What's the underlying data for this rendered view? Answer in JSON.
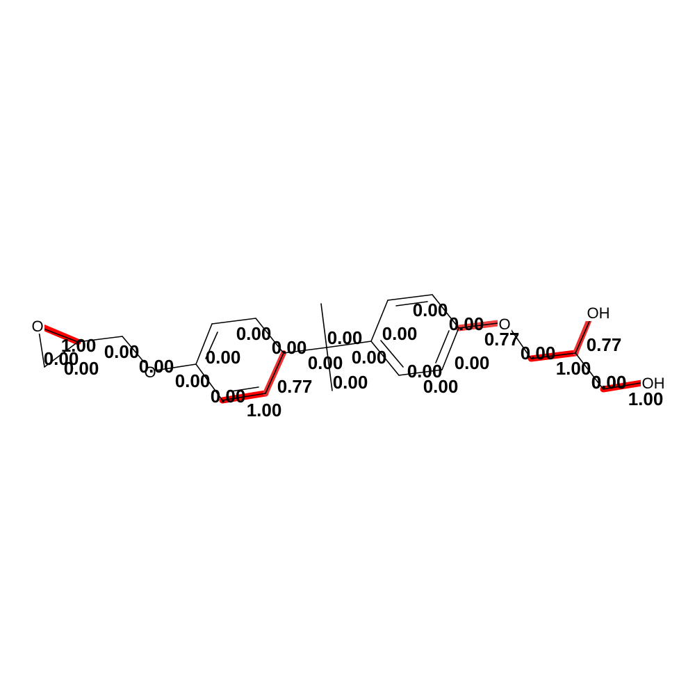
{
  "colors": {
    "highlight": "#ff0000",
    "bond": "#000000",
    "label": "#000000",
    "background": "#ffffff"
  },
  "atoms": [
    {
      "id": "o_epoxide",
      "label": "O"
    },
    {
      "id": "o_ether",
      "label": "O"
    },
    {
      "id": "o_ester",
      "label": "O"
    },
    {
      "id": "oh_upper",
      "label": "OH"
    },
    {
      "id": "oh_lower",
      "label": "OH"
    }
  ],
  "bond_weights": [
    {
      "id": "w01",
      "text": "1.00"
    },
    {
      "id": "w02",
      "text": "0.00"
    },
    {
      "id": "w03",
      "text": "0.00"
    },
    {
      "id": "w04",
      "text": "0.00"
    },
    {
      "id": "w05",
      "text": "0.00"
    },
    {
      "id": "w06",
      "text": "0.00"
    },
    {
      "id": "w07",
      "text": "0.00"
    },
    {
      "id": "w08",
      "text": "0.00"
    },
    {
      "id": "w09",
      "text": "0.00"
    },
    {
      "id": "w10",
      "text": "0.77"
    },
    {
      "id": "w11",
      "text": "1.00"
    },
    {
      "id": "w12",
      "text": "0.00"
    },
    {
      "id": "w13",
      "text": "0.00"
    },
    {
      "id": "w14",
      "text": "0.00"
    },
    {
      "id": "w15",
      "text": "0.00"
    },
    {
      "id": "w16",
      "text": "0.00"
    },
    {
      "id": "w17",
      "text": "0.00"
    },
    {
      "id": "w18",
      "text": "0.00"
    },
    {
      "id": "w19",
      "text": "0.00"
    },
    {
      "id": "w20",
      "text": "0.00"
    },
    {
      "id": "w21",
      "text": "0.00"
    },
    {
      "id": "w22",
      "text": "0.00"
    },
    {
      "id": "w23",
      "text": "0.00"
    },
    {
      "id": "w24",
      "text": "0.77"
    },
    {
      "id": "w25",
      "text": "0.00"
    },
    {
      "id": "w26",
      "text": "1.00"
    },
    {
      "id": "w27",
      "text": "0.77"
    },
    {
      "id": "w28",
      "text": "0.00"
    },
    {
      "id": "w29",
      "text": "1.00"
    }
  ]
}
